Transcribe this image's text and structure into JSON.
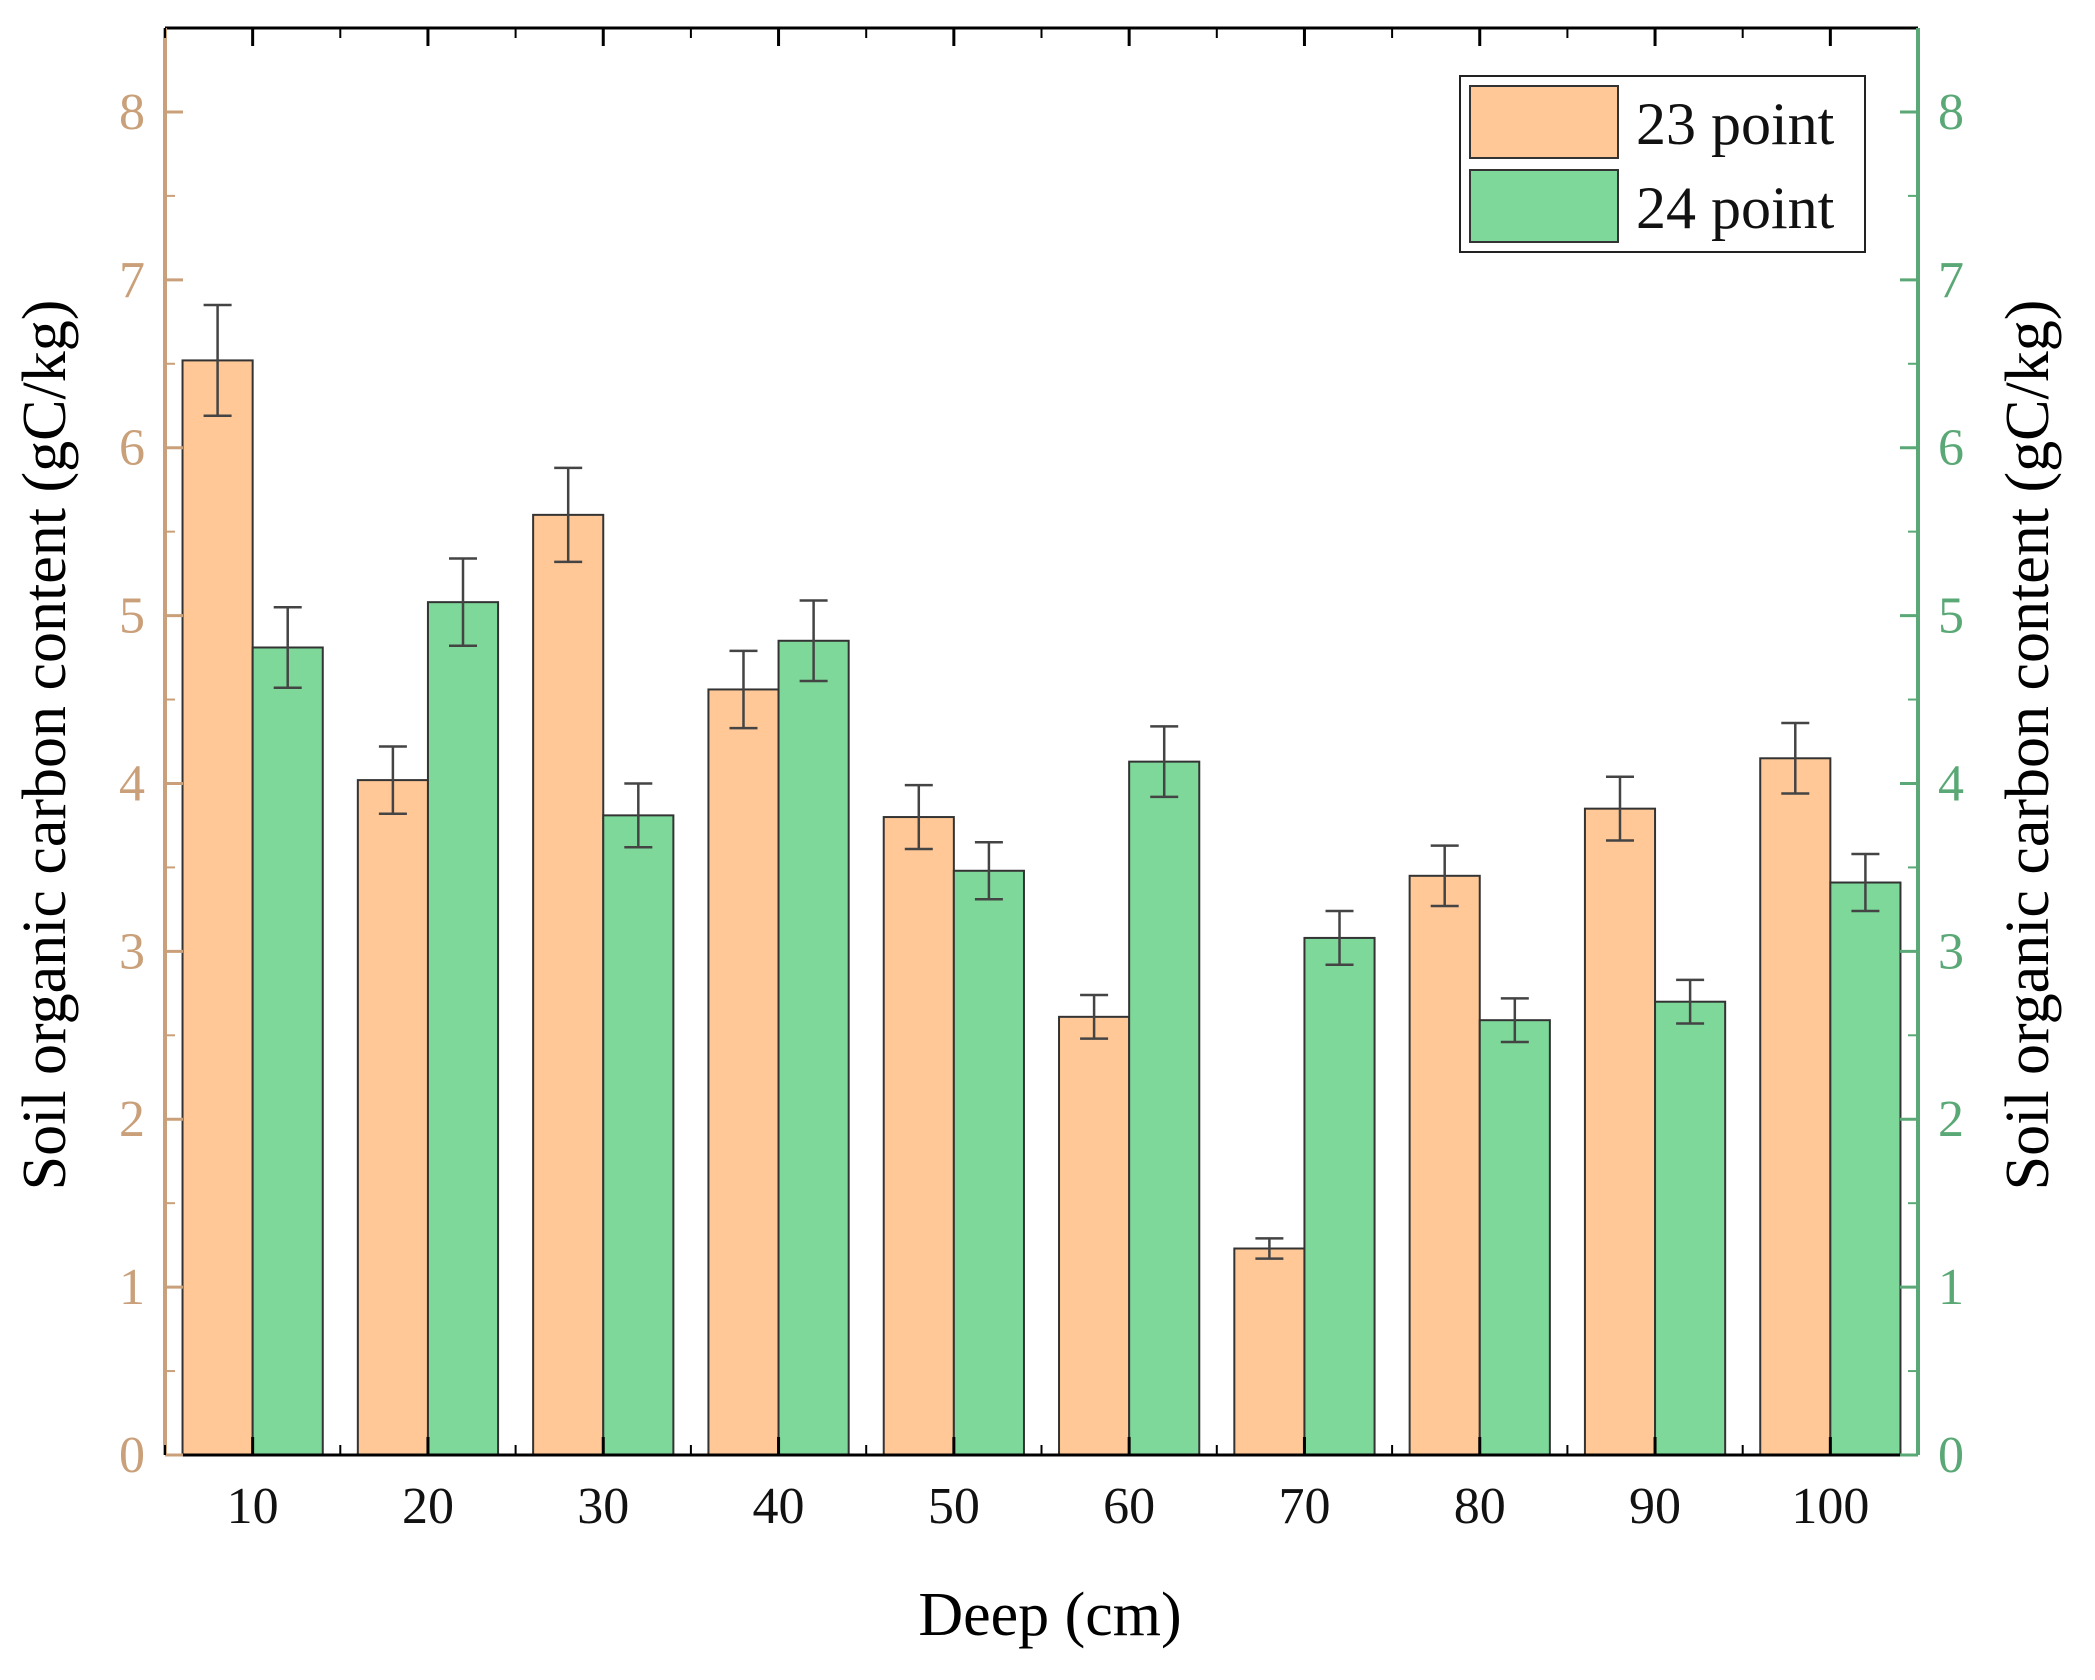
{
  "chart_data": {
    "type": "bar",
    "title": "",
    "xlabel": "Deep (cm)",
    "ylabel_left": "Soil organic carbon content (gC/kg)",
    "ylabel_right": "Soil organic carbon content (gC/kg)",
    "ylim": [
      0,
      8.5
    ],
    "yticks": [
      0,
      1,
      2,
      3,
      4,
      5,
      6,
      7,
      8
    ],
    "categories": [
      "10",
      "20",
      "30",
      "40",
      "50",
      "60",
      "70",
      "80",
      "90",
      "100"
    ],
    "series": [
      {
        "name": "23 point",
        "color": "#ffc896",
        "axis": "left",
        "values": [
          6.52,
          4.02,
          5.6,
          4.56,
          3.8,
          2.61,
          1.23,
          3.45,
          3.85,
          4.15
        ],
        "errors": [
          0.33,
          0.2,
          0.28,
          0.23,
          0.19,
          0.13,
          0.06,
          0.18,
          0.19,
          0.21
        ]
      },
      {
        "name": "24 point",
        "color": "#7dd89a",
        "axis": "right",
        "values": [
          4.81,
          5.08,
          3.81,
          4.85,
          3.48,
          4.13,
          3.08,
          2.59,
          2.7,
          3.41
        ],
        "errors": [
          0.24,
          0.26,
          0.19,
          0.24,
          0.17,
          0.21,
          0.16,
          0.13,
          0.13,
          0.17
        ]
      }
    ],
    "legend": "top-right",
    "grid": false,
    "colors": {
      "left_axis": "#c9a07a",
      "right_axis": "#5aa875",
      "bar_outline": "#333333",
      "error_bar": "#444444"
    }
  }
}
